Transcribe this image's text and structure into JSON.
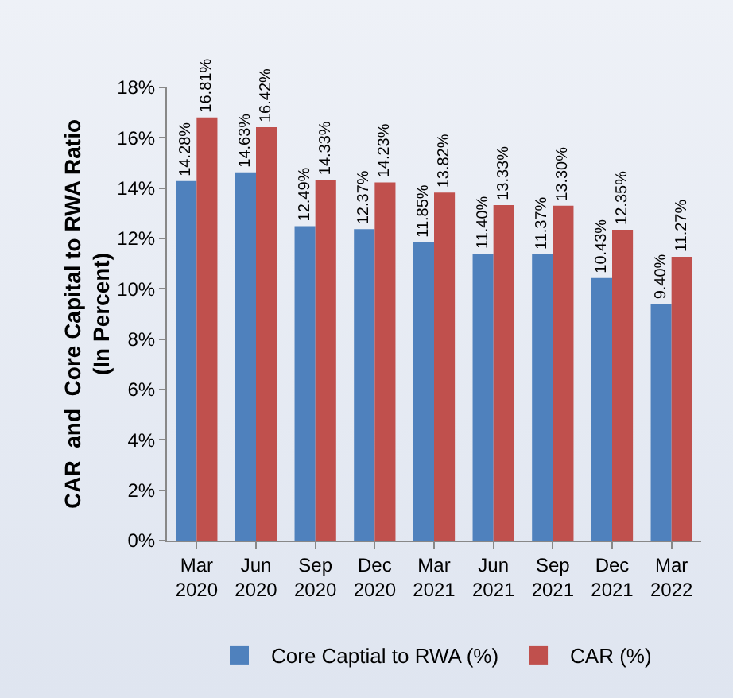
{
  "chart_data": {
    "type": "bar",
    "ylabel": "CAR  and  Core Capital to RWA Ratio\n(In Percent)",
    "categories": [
      "Mar 2020",
      "Jun 2020",
      "Sep 2020",
      "Dec 2020",
      "Mar 2021",
      "Jun 2021",
      "Sep 2021",
      "Dec 2021",
      "Mar 2022"
    ],
    "series": [
      {
        "name": "Core Captial to RWA (%)",
        "color": "#4f81bd",
        "values": [
          14.28,
          14.63,
          12.49,
          12.37,
          11.85,
          11.4,
          11.37,
          10.43,
          9.4
        ],
        "value_labels": [
          "14.28%",
          "14.63%",
          "12.49%",
          "12.37%",
          "11.85%",
          "11.40%",
          "11.37%",
          "10.43%",
          "9.40%"
        ]
      },
      {
        "name": "CAR (%)",
        "color": "#c0504d",
        "values": [
          16.81,
          16.42,
          14.33,
          14.23,
          13.82,
          13.33,
          13.3,
          12.35,
          11.27
        ],
        "value_labels": [
          "16.81%",
          "16.42%",
          "14.33%",
          "14.23%",
          "13.82%",
          "13.33%",
          "13.30%",
          "12.35%",
          "11.27%"
        ]
      }
    ],
    "ylim": [
      0,
      18
    ],
    "yticks": [
      {
        "value": 0,
        "label": "0%"
      },
      {
        "value": 2,
        "label": "2%"
      },
      {
        "value": 4,
        "label": "4%"
      },
      {
        "value": 6,
        "label": "6%"
      },
      {
        "value": 8,
        "label": "8%"
      },
      {
        "value": 10,
        "label": "10%"
      },
      {
        "value": 12,
        "label": "12%"
      },
      {
        "value": 14,
        "label": "14%"
      },
      {
        "value": 16,
        "label": "16%"
      },
      {
        "value": 18,
        "label": "18%"
      }
    ],
    "legend": "bottom"
  }
}
